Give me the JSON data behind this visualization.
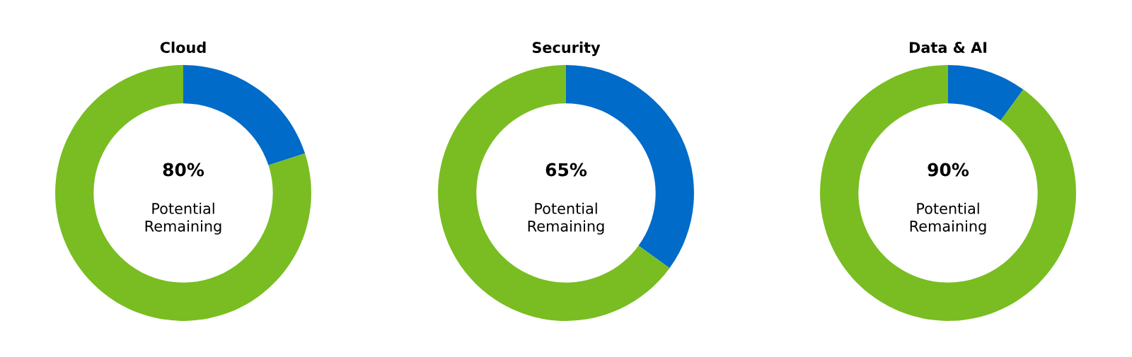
{
  "chart_data": [
    {
      "type": "donut",
      "title": "Cloud",
      "categories": [
        null,
        null
      ],
      "values": [
        20,
        80
      ],
      "colors": [
        "#016bc9",
        "#79bd22"
      ],
      "annotations": [
        "80%",
        "Potential\nRemaining"
      ]
    },
    {
      "type": "donut",
      "title": "Security",
      "categories": [
        null,
        null
      ],
      "values": [
        35,
        65
      ],
      "colors": [
        "#016bc9",
        "#79bd22"
      ],
      "annotations": [
        "65%",
        "Potential\nRemaining"
      ]
    },
    {
      "type": "donut",
      "title": "Data & AI",
      "categories": [
        null,
        null
      ],
      "values": [
        10,
        90
      ],
      "colors": [
        "#016bc9",
        "#79bd22"
      ],
      "annotations": [
        "90%",
        "Potential\nRemaining"
      ]
    }
  ]
}
